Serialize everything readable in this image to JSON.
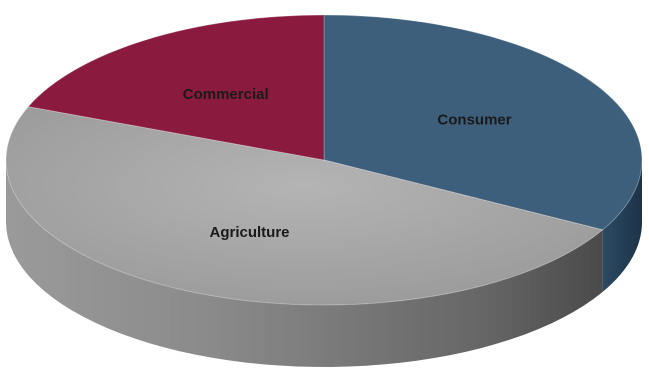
{
  "chart_data": {
    "type": "pie",
    "title": "",
    "style": "3d",
    "series": [
      {
        "labels": [
          "Consumer",
          "Agriculture",
          "Commercial"
        ],
        "values": [
          33,
          48,
          19
        ],
        "colors": [
          "#3d5f7b",
          "#a6a6a6",
          "#8b1a3f"
        ]
      }
    ]
  }
}
